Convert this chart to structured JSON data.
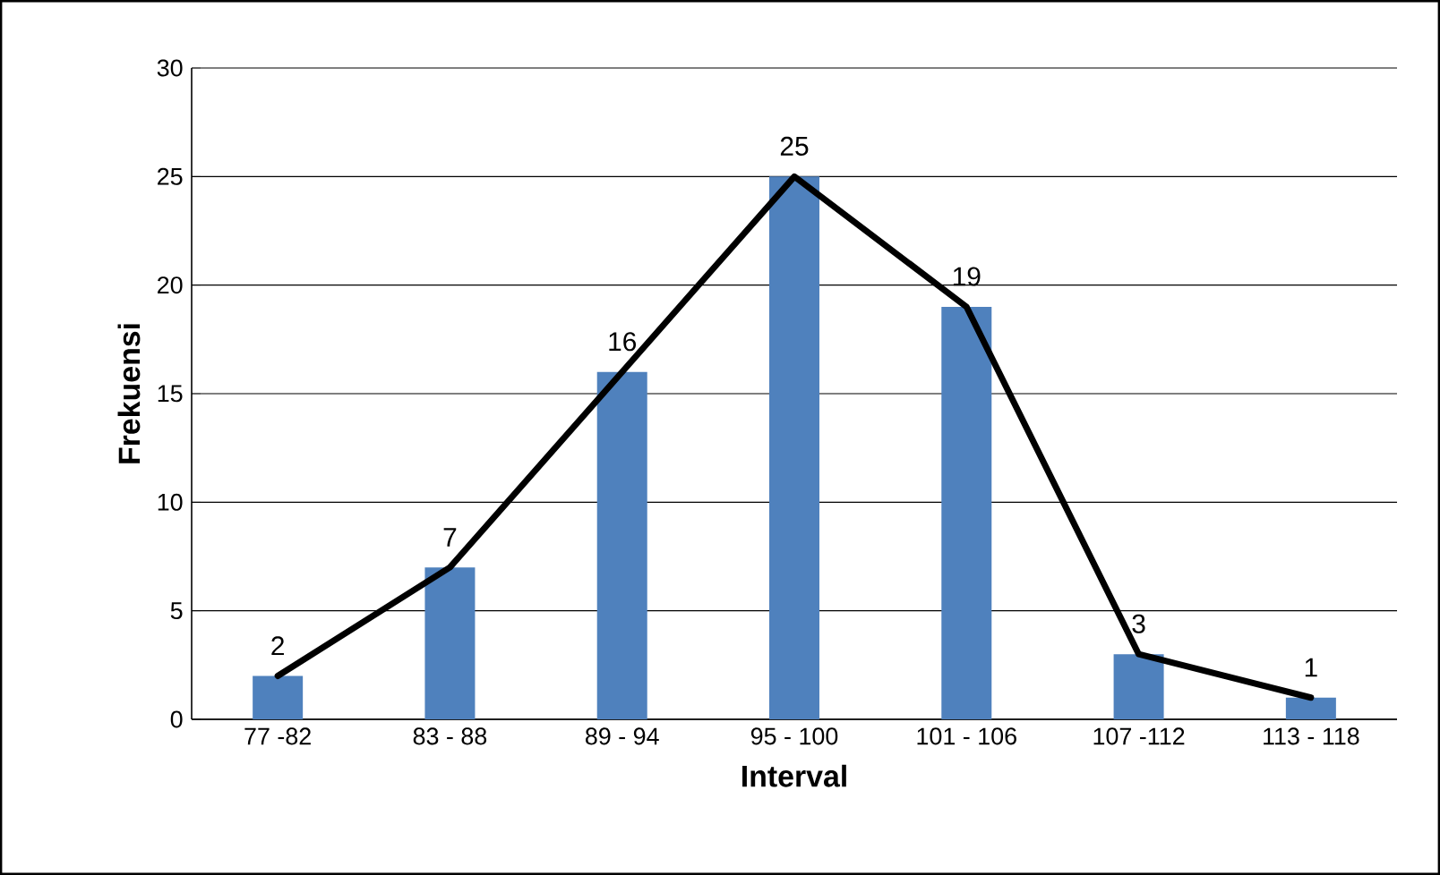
{
  "chart_data": {
    "type": "bar",
    "xlabel": "Interval",
    "ylabel": "Frekuensi",
    "categories": [
      "77 -82",
      "83 - 88",
      "89 - 94",
      "95 - 100",
      "101 - 106",
      "107 -112",
      "113 - 118"
    ],
    "series": [
      {
        "color": "#4f81bd",
        "values": [
          2,
          7,
          16,
          25,
          19,
          3,
          1
        ],
        "value_labels": [
          "2",
          "7",
          "16",
          "25",
          "19",
          "3",
          "1"
        ]
      },
      {
        "type": "line",
        "color": "#000000",
        "values": [
          2,
          7,
          16,
          25,
          19,
          3,
          1
        ]
      }
    ],
    "ylim": [
      0,
      30
    ],
    "yticks": [
      0,
      5,
      10,
      15,
      20,
      25,
      30
    ],
    "grid": "y"
  }
}
